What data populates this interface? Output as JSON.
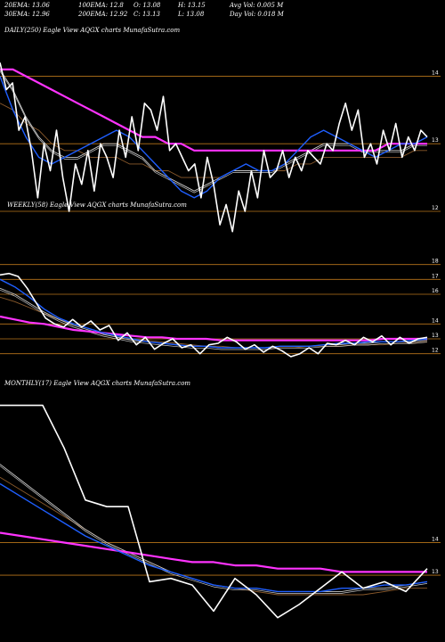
{
  "header": {
    "row1": [
      {
        "key": "ema20",
        "text": "20EMA: 13.06"
      },
      {
        "key": "ema100",
        "text": "100EMA: 12.8"
      },
      {
        "key": "open",
        "text": "O: 13.08"
      },
      {
        "key": "high",
        "text": "H: 13.15"
      },
      {
        "key": "avgvol",
        "text": "Avg Vol: 0.005 M"
      }
    ],
    "row2": [
      {
        "key": "ema30",
        "text": "30EMA: 12.96"
      },
      {
        "key": "ema200",
        "text": "200EMA: 12.92"
      },
      {
        "key": "close",
        "text": "C: 13.13"
      },
      {
        "key": "low",
        "text": "L: 13.08"
      },
      {
        "key": "dayvol",
        "text": "Day Vol: 0.018 M"
      }
    ]
  },
  "panel_labels": {
    "daily": "DAILY(250) Eagle  View  AQGX  charts MunafaSutra.com",
    "weekly": "WEEKLY(58) Eagle  View  AQGX  charts MunafaSutra.com",
    "monthly": "MONTHLY(17) Eagle  View  AQGX  charts MunafaSutra.com"
  },
  "colors": {
    "background": "#000000",
    "price": "#ffffff",
    "ema_short": "#1f5fff",
    "ema_long": "#ff33ff",
    "ema_mid": "#c8c8c8",
    "ema_brown": "#8b5a2b",
    "gridline": "#b8741a"
  },
  "chart_data": [
    {
      "type": "line",
      "name": "daily",
      "ylim": [
        11.3,
        14.6
      ],
      "yticks": [
        12,
        13,
        14
      ],
      "series": [
        {
          "role": "price",
          "values": [
            14.2,
            13.8,
            13.9,
            13.2,
            13.4,
            12.9,
            12.2,
            13.0,
            12.6,
            13.2,
            12.5,
            12.0,
            12.7,
            12.4,
            12.9,
            12.3,
            13.0,
            12.8,
            12.5,
            13.2,
            12.8,
            13.4,
            12.9,
            13.6,
            13.5,
            13.2,
            13.7,
            12.9,
            13.0,
            12.8,
            12.6,
            12.7,
            12.2,
            12.8,
            12.4,
            11.8,
            12.1,
            11.7,
            12.3,
            12.0,
            12.6,
            12.2,
            12.9,
            12.5,
            12.6,
            12.9,
            12.5,
            12.8,
            12.6,
            12.9,
            12.8,
            12.7,
            13.0,
            12.9,
            13.3,
            13.6,
            13.2,
            13.5,
            12.8,
            13.0,
            12.7,
            13.2,
            12.9,
            13.3,
            12.8,
            13.1,
            12.9,
            13.2,
            13.1
          ]
        },
        {
          "role": "ema_short",
          "values": [
            14.0,
            13.5,
            13.1,
            12.8,
            12.7,
            12.8,
            12.9,
            13.0,
            13.1,
            13.2,
            13.1,
            12.9,
            12.7,
            12.5,
            12.3,
            12.2,
            12.3,
            12.5,
            12.6,
            12.7,
            12.6,
            12.6,
            12.7,
            12.9,
            13.1,
            13.2,
            13.1,
            13.0,
            12.9,
            12.8,
            12.9,
            13.0,
            13.0,
            13.1
          ]
        },
        {
          "role": "ema_mid",
          "values": [
            14.1,
            13.8,
            13.4,
            13.1,
            12.9,
            12.8,
            12.8,
            12.9,
            13.0,
            13.0,
            12.9,
            12.8,
            12.6,
            12.5,
            12.4,
            12.3,
            12.4,
            12.5,
            12.6,
            12.6,
            12.6,
            12.6,
            12.7,
            12.8,
            12.9,
            13.0,
            13.0,
            13.0,
            12.9,
            12.9,
            12.9,
            12.9,
            13.0,
            13.0
          ]
        },
        {
          "role": "ema_brown",
          "values": [
            13.6,
            13.5,
            13.3,
            13.2,
            13.0,
            12.9,
            12.9,
            12.8,
            12.8,
            12.8,
            12.7,
            12.7,
            12.6,
            12.6,
            12.5,
            12.5,
            12.5,
            12.5,
            12.6,
            12.6,
            12.6,
            12.6,
            12.6,
            12.7,
            12.7,
            12.8,
            12.8,
            12.8,
            12.8,
            12.8,
            12.8,
            12.8,
            12.9,
            12.9
          ]
        },
        {
          "role": "ema_long",
          "values": [
            14.1,
            14.1,
            14.0,
            13.9,
            13.8,
            13.7,
            13.6,
            13.5,
            13.4,
            13.3,
            13.2,
            13.1,
            13.1,
            13.0,
            13.0,
            12.9,
            12.9,
            12.9,
            12.9,
            12.9,
            12.9,
            12.9,
            12.9,
            12.9,
            12.9,
            12.9,
            12.9,
            12.9,
            12.9,
            12.9,
            13.0,
            13.0,
            13.0,
            13.0
          ]
        }
      ]
    },
    {
      "type": "line",
      "name": "weekly",
      "ylim": [
        11.2,
        18.4
      ],
      "yticks": [
        12,
        13,
        14,
        16,
        17,
        18
      ],
      "series": [
        {
          "role": "price",
          "values": [
            17.3,
            17.4,
            17.2,
            16.4,
            15.4,
            14.4,
            14.0,
            13.8,
            14.3,
            13.8,
            14.2,
            13.6,
            13.9,
            12.9,
            13.4,
            12.6,
            13.1,
            12.3,
            12.7,
            13.0,
            12.4,
            12.6,
            12.0,
            12.6,
            12.7,
            13.1,
            12.8,
            12.3,
            12.6,
            12.1,
            12.5,
            12.2,
            11.8,
            12.0,
            12.4,
            12.0,
            12.7,
            12.6,
            12.9,
            12.6,
            13.1,
            12.8,
            13.2,
            12.6,
            13.1,
            12.7,
            13.0,
            13.1
          ]
        },
        {
          "role": "ema_short",
          "values": [
            17.0,
            16.5,
            15.8,
            15.0,
            14.4,
            14.0,
            13.7,
            13.4,
            13.2,
            13.0,
            12.8,
            12.7,
            12.6,
            12.5,
            12.5,
            12.4,
            12.4,
            12.4,
            12.4,
            12.5,
            12.5,
            12.5,
            12.6,
            12.7,
            12.7,
            12.8,
            12.8,
            12.8,
            12.9,
            13.0
          ]
        },
        {
          "role": "ema_mid",
          "values": [
            16.4,
            16.0,
            15.4,
            14.8,
            14.3,
            13.9,
            13.6,
            13.3,
            13.1,
            12.9,
            12.8,
            12.7,
            12.6,
            12.5,
            12.5,
            12.4,
            12.4,
            12.4,
            12.4,
            12.5,
            12.5,
            12.5,
            12.6,
            12.6,
            12.7,
            12.7,
            12.8,
            12.8,
            12.8,
            12.9
          ]
        },
        {
          "role": "ema_brown",
          "values": [
            15.8,
            15.5,
            15.1,
            14.7,
            14.3,
            14.0,
            13.7,
            13.4,
            13.2,
            13.0,
            12.9,
            12.8,
            12.7,
            12.6,
            12.5,
            12.5,
            12.4,
            12.4,
            12.4,
            12.4,
            12.4,
            12.5,
            12.5,
            12.5,
            12.6,
            12.6,
            12.6,
            12.7,
            12.7,
            12.8
          ]
        },
        {
          "role": "ema_long",
          "values": [
            14.5,
            14.3,
            14.1,
            14.0,
            13.8,
            13.6,
            13.5,
            13.4,
            13.3,
            13.2,
            13.1,
            13.1,
            13.0,
            13.0,
            13.0,
            12.9,
            12.9,
            12.9,
            12.9,
            12.9,
            12.9,
            12.9,
            12.9,
            12.9,
            12.9,
            12.9,
            13.0,
            13.0,
            13.0,
            13.0
          ]
        }
      ]
    },
    {
      "type": "line",
      "name": "monthly",
      "ylim": [
        11.5,
        18.6
      ],
      "yticks": [
        13,
        14
      ],
      "series": [
        {
          "role": "price",
          "values": [
            18.2,
            18.2,
            18.2,
            16.9,
            15.3,
            15.1,
            15.1,
            12.8,
            12.9,
            12.7,
            11.9,
            12.9,
            12.4,
            11.7,
            12.1,
            12.6,
            13.1,
            12.6,
            12.8,
            12.5,
            13.2
          ]
        },
        {
          "role": "ema_short",
          "values": [
            15.8,
            15.4,
            15.0,
            14.6,
            14.2,
            13.9,
            13.6,
            13.3,
            13.1,
            12.9,
            12.7,
            12.6,
            12.6,
            12.5,
            12.5,
            12.5,
            12.6,
            12.6,
            12.7,
            12.7,
            12.8
          ]
        },
        {
          "role": "ema_mid",
          "values": [
            16.4,
            15.9,
            15.4,
            14.9,
            14.4,
            14.0,
            13.7,
            13.4,
            13.1,
            12.9,
            12.7,
            12.6,
            12.6,
            12.5,
            12.5,
            12.5,
            12.5,
            12.6,
            12.6,
            12.7,
            12.8
          ]
        },
        {
          "role": "ema_brown",
          "values": [
            16.0,
            15.6,
            15.2,
            14.8,
            14.4,
            14.0,
            13.7,
            13.4,
            13.1,
            12.9,
            12.7,
            12.6,
            12.5,
            12.4,
            12.4,
            12.4,
            12.4,
            12.4,
            12.5,
            12.6,
            12.6
          ]
        },
        {
          "role": "ema_long",
          "values": [
            14.3,
            14.2,
            14.1,
            14.0,
            13.9,
            13.8,
            13.7,
            13.6,
            13.5,
            13.4,
            13.4,
            13.3,
            13.3,
            13.2,
            13.2,
            13.2,
            13.1,
            13.1,
            13.1,
            13.1,
            13.1
          ]
        }
      ]
    }
  ]
}
